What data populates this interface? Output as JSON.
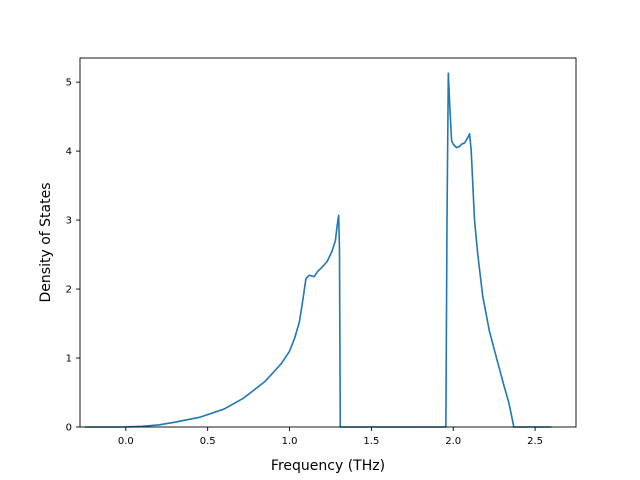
{
  "chart_data": {
    "type": "line",
    "title": "",
    "xlabel": "Frequency (THz)",
    "ylabel": "Density of States",
    "xlim": [
      -0.28,
      2.75
    ],
    "ylim": [
      0,
      5.35
    ],
    "xticks": [
      0.0,
      0.5,
      1.0,
      1.5,
      2.0,
      2.5
    ],
    "xtick_labels": [
      "0.0",
      "0.5",
      "1.0",
      "1.5",
      "2.0",
      "2.5"
    ],
    "yticks": [
      0,
      1,
      2,
      3,
      4,
      5
    ],
    "ytick_labels": [
      "0",
      "1",
      "2",
      "3",
      "4",
      "5"
    ],
    "grid": false,
    "legend": "none",
    "colors": {
      "line": "#1f77b4",
      "axes": "#000000",
      "background": "#ffffff"
    },
    "series": [
      {
        "x": [
          -0.25,
          -0.1,
          0.0,
          0.1,
          0.2,
          0.3,
          0.45,
          0.6,
          0.72,
          0.85,
          0.95,
          1.0,
          1.03,
          1.06,
          1.08,
          1.1,
          1.12,
          1.15,
          1.17,
          1.2,
          1.23,
          1.26,
          1.28,
          1.29,
          1.3,
          1.305,
          1.31,
          1.35,
          1.5,
          1.7,
          1.9,
          1.955,
          1.962,
          1.97,
          1.98,
          1.99,
          2.0,
          2.02,
          2.04,
          2.05,
          2.07,
          2.09,
          2.1,
          2.11,
          2.13,
          2.15,
          2.18,
          2.22,
          2.27,
          2.31,
          2.34,
          2.36,
          2.37,
          2.38,
          2.4,
          2.5,
          2.6
        ],
        "y": [
          0.0,
          0.0,
          0.0,
          0.01,
          0.03,
          0.07,
          0.14,
          0.26,
          0.42,
          0.66,
          0.92,
          1.1,
          1.28,
          1.52,
          1.82,
          2.15,
          2.2,
          2.18,
          2.25,
          2.32,
          2.4,
          2.55,
          2.7,
          2.9,
          3.07,
          2.6,
          0.0,
          0.0,
          0.0,
          0.0,
          0.0,
          0.0,
          3.0,
          5.13,
          4.6,
          4.15,
          4.1,
          4.05,
          4.07,
          4.1,
          4.12,
          4.2,
          4.25,
          4.0,
          3.0,
          2.5,
          1.9,
          1.4,
          0.95,
          0.6,
          0.35,
          0.12,
          0.0,
          0.0,
          0.0,
          0.0,
          0.0
        ]
      }
    ]
  }
}
